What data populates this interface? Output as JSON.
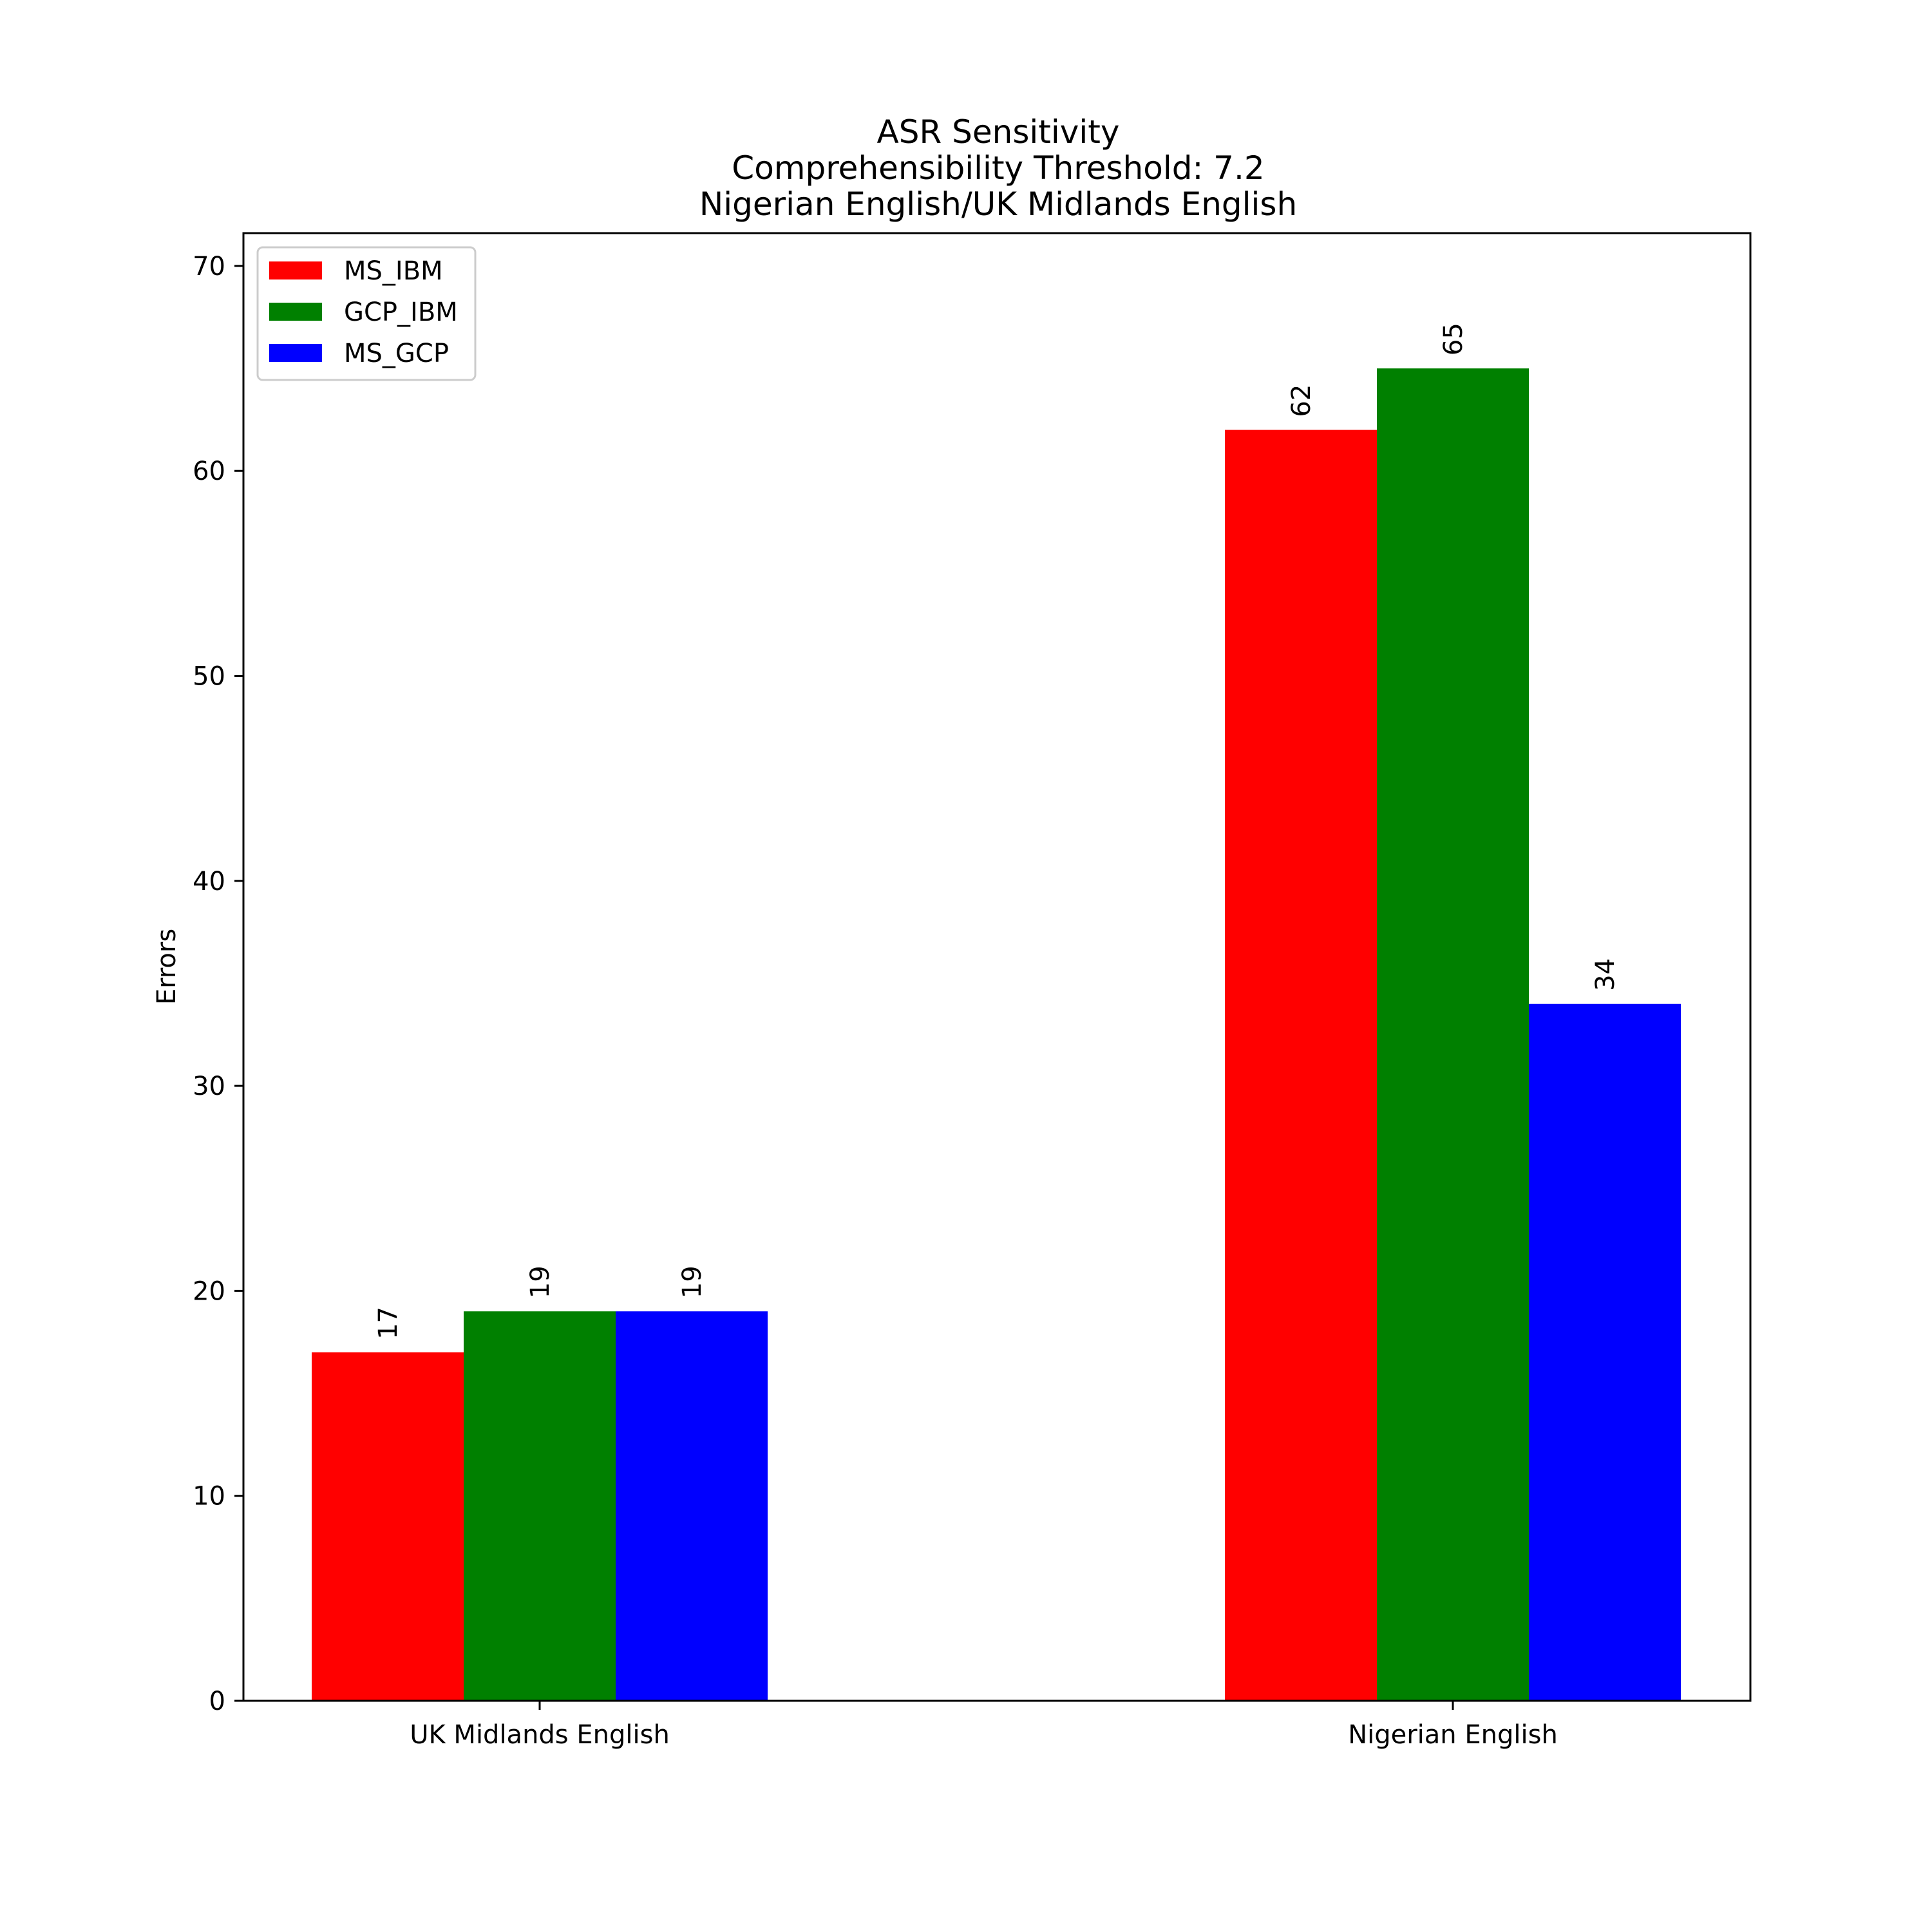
{
  "chart_data": {
    "type": "bar",
    "title": [
      "ASR Sensitivity",
      "Comprehensibility Threshold: 7.2",
      "Nigerian English/UK Midlands English"
    ],
    "xlabel": "",
    "ylabel": "Errors",
    "categories": [
      "UK Midlands English",
      "Nigerian English"
    ],
    "series": [
      {
        "name": "MS_IBM",
        "color": "#ff0000",
        "values": [
          17,
          62
        ]
      },
      {
        "name": "GCP_IBM",
        "color": "#008000",
        "values": [
          19,
          65
        ]
      },
      {
        "name": "MS_GCP",
        "color": "#0000ff",
        "values": [
          19,
          34
        ]
      }
    ],
    "ylim": [
      0,
      71.6
    ],
    "yticks": [
      0,
      10,
      20,
      30,
      40,
      50,
      60,
      70
    ],
    "grid": false,
    "legend_position": "top-left",
    "data_labels": true
  }
}
